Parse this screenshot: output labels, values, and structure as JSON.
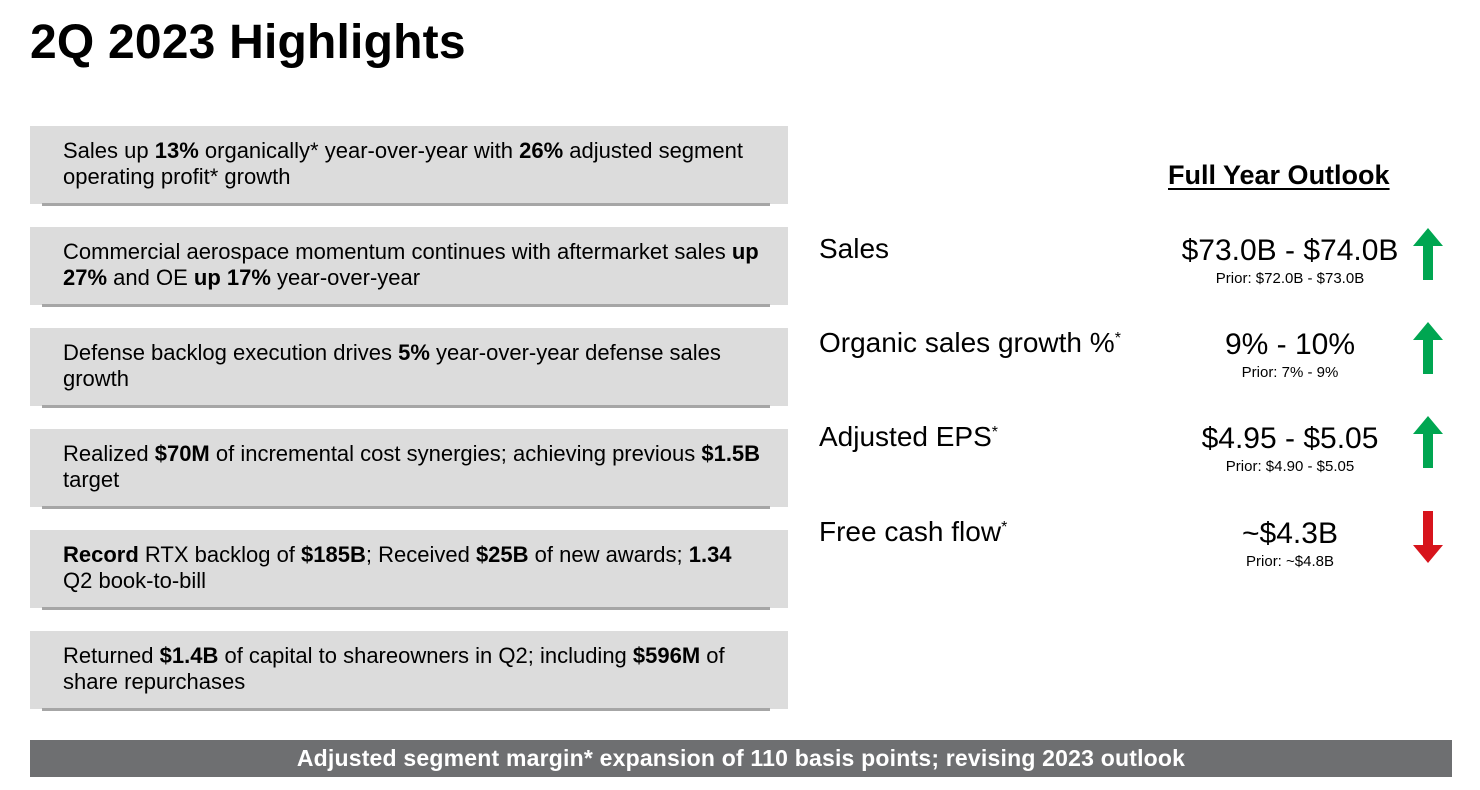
{
  "page": {
    "title": "2Q 2023 Highlights"
  },
  "highlights": [
    {
      "segments": [
        {
          "text": "Sales up ",
          "bold": false
        },
        {
          "text": "13%",
          "bold": true
        },
        {
          "text": " organically* year-over-year with ",
          "bold": false
        },
        {
          "text": "26%",
          "bold": true
        },
        {
          "text": " adjusted segment operating profit* growth",
          "bold": false
        }
      ]
    },
    {
      "segments": [
        {
          "text": "Commercial aerospace momentum continues with aftermarket sales ",
          "bold": false
        },
        {
          "text": "up 27%",
          "bold": true
        },
        {
          "text": " and OE ",
          "bold": false
        },
        {
          "text": "up 17%",
          "bold": true
        },
        {
          "text": " year-over-year",
          "bold": false
        }
      ]
    },
    {
      "segments": [
        {
          "text": "Defense backlog execution drives ",
          "bold": false
        },
        {
          "text": "5%",
          "bold": true
        },
        {
          "text": " year-over-year defense sales growth",
          "bold": false
        }
      ]
    },
    {
      "segments": [
        {
          "text": "Realized ",
          "bold": false
        },
        {
          "text": "$70M",
          "bold": true
        },
        {
          "text": " of incremental cost synergies; achieving previous ",
          "bold": false
        },
        {
          "text": "$1.5B",
          "bold": true
        },
        {
          "text": " target",
          "bold": false
        }
      ]
    },
    {
      "segments": [
        {
          "text": "Record",
          "bold": true
        },
        {
          "text": " RTX backlog of ",
          "bold": false
        },
        {
          "text": "$185B",
          "bold": true
        },
        {
          "text": "; Received ",
          "bold": false
        },
        {
          "text": "$25B",
          "bold": true
        },
        {
          "text": " of new awards; ",
          "bold": false
        },
        {
          "text": "1.34",
          "bold": true
        },
        {
          "text": " Q2 book-to-bill",
          "bold": false
        }
      ]
    },
    {
      "segments": [
        {
          "text": "Returned ",
          "bold": false
        },
        {
          "text": "$1.4B",
          "bold": true
        },
        {
          "text": " of capital to shareowners in Q2; including ",
          "bold": false
        },
        {
          "text": "$596M",
          "bold": true
        },
        {
          "text": " of share repurchases",
          "bold": false
        }
      ]
    }
  ],
  "outlook": {
    "title": "Full Year Outlook",
    "metrics": [
      {
        "label": "Sales",
        "marker": "",
        "value": "$73.0B - $74.0B",
        "prior": "Prior: $72.0B - $73.0B",
        "direction": "up",
        "icon": "arrow-up-icon",
        "color": "#00a651"
      },
      {
        "label": "Organic sales growth %",
        "marker": "*",
        "value": "9% - 10%",
        "prior": "Prior: 7% - 9%",
        "direction": "up",
        "icon": "arrow-up-icon",
        "color": "#00a651"
      },
      {
        "label": "Adjusted EPS",
        "marker": "*",
        "value": "$4.95 - $5.05",
        "prior": "Prior: $4.90 - $5.05",
        "direction": "up",
        "icon": "arrow-up-icon",
        "color": "#00a651"
      },
      {
        "label": "Free cash flow",
        "marker": "*",
        "value": "~$4.3B",
        "prior": "Prior: ~$4.8B",
        "direction": "down",
        "icon": "arrow-down-icon",
        "color": "#d7141c"
      }
    ]
  },
  "footer": {
    "text": "Adjusted segment margin* expansion of 110 basis points; revising 2023 outlook"
  },
  "colors": {
    "card_background": "#dcdcdc",
    "card_shadow": "#a6a6a6",
    "footer_background": "#6e6f71",
    "up_arrow": "#00a651",
    "down_arrow": "#d7141c"
  }
}
